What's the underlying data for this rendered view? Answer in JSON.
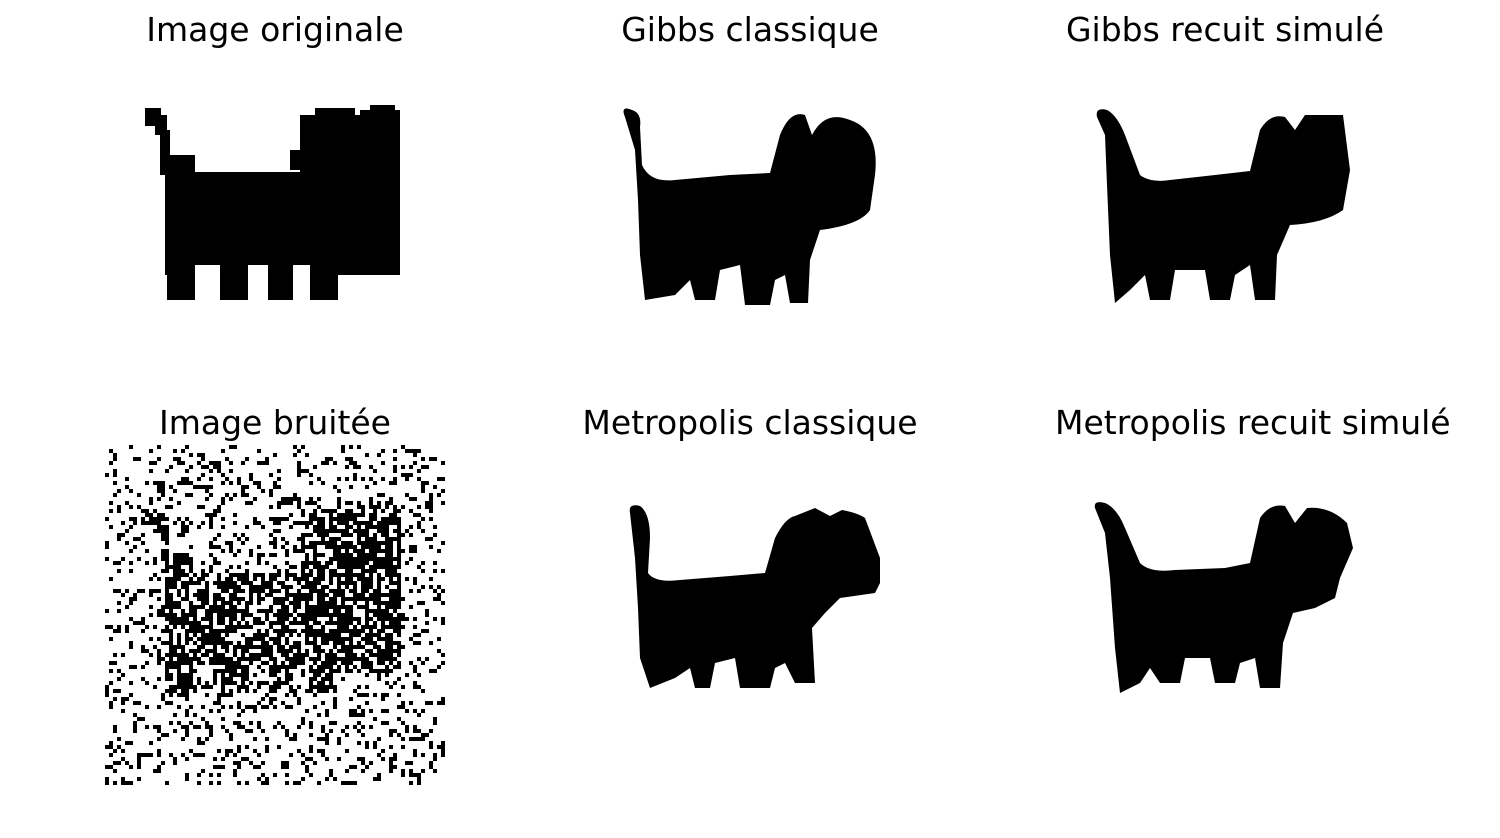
{
  "figure": {
    "panels": [
      {
        "title": "Image originale",
        "kind": "original"
      },
      {
        "title": "Gibbs classique",
        "kind": "denoised"
      },
      {
        "title": "Gibbs recuit simulé",
        "kind": "denoised"
      },
      {
        "title": "Image bruitée",
        "kind": "noisy"
      },
      {
        "title": "Metropolis classique",
        "kind": "denoised"
      },
      {
        "title": "Metropolis recuit simulé",
        "kind": "denoised"
      }
    ],
    "colors": {
      "background": "#ffffff",
      "pixel_on": "#000000"
    }
  }
}
